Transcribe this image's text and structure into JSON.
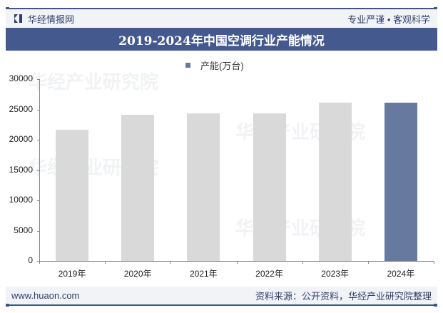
{
  "header": {
    "brand": "华经情报网",
    "slogan": "专业严谨 • 客观科学"
  },
  "title": "2019-2024年中国空调行业产能情况",
  "legend": {
    "label": "产能(万台)",
    "color": "#67799f"
  },
  "footer": {
    "website": "www.huaon.com",
    "source": "资料来源：公开资料，华经产业研究院整理"
  },
  "watermark": {
    "text": "华经产业研究院",
    "url": "www.huaon.com"
  },
  "yticks": [
    "30000",
    "25000",
    "20000",
    "15000",
    "10000",
    "5000",
    "0"
  ],
  "chart_data": {
    "type": "bar",
    "title": "2019-2024年中国空调行业产能情况",
    "categories": [
      "2019年",
      "2020年",
      "2021年",
      "2022年",
      "2023年",
      "2024年"
    ],
    "series": [
      {
        "name": "产能(万台)",
        "values": [
          21650,
          24100,
          24350,
          24350,
          26100,
          26100
        ]
      }
    ],
    "highlight_index": 5,
    "colors": {
      "default": "#d9d9d9",
      "highlight": "#67799f"
    },
    "xlabel": "",
    "ylabel": "",
    "ylim": [
      0,
      30000
    ],
    "ytick_step": 5000,
    "grid": false,
    "legend_position": "top"
  }
}
